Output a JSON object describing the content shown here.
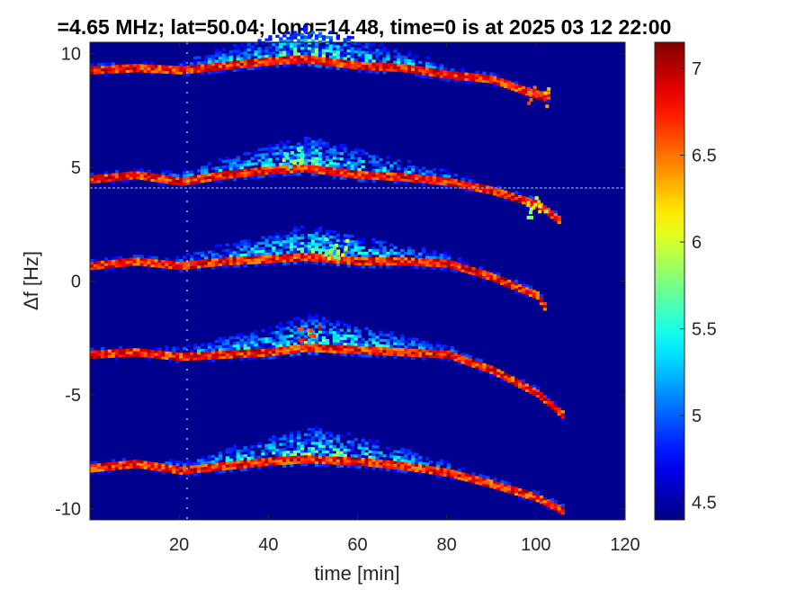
{
  "chart_data": {
    "type": "heatmap",
    "title": "=4.65 MHz;  lat=50.04; long=14.48, time=0 is at 2025 03 12 22:00",
    "xlabel": "time [min]",
    "ylabel": "Δf [Hz]",
    "xlim": [
      0,
      120
    ],
    "ylim": [
      -10.5,
      10.5
    ],
    "xticks": [
      20,
      40,
      60,
      80,
      100,
      120
    ],
    "xtick_labels": [
      "20",
      "40",
      "60",
      "80",
      "100",
      "120"
    ],
    "yticks": [
      10,
      5,
      0,
      -5,
      -10
    ],
    "ytick_labels": [
      "10",
      "5",
      "0",
      "-5",
      "-10"
    ],
    "colorbar": {
      "range": [
        4.4,
        7.15
      ],
      "ticks": [
        7,
        6.5,
        6,
        5.5,
        5,
        4.5
      ],
      "tick_labels": [
        "7",
        "6.5",
        "6",
        "5.5",
        "5",
        "4.5"
      ],
      "colormap": "jet"
    },
    "background_value": 4.45,
    "data_end_time_min": 107,
    "series": [
      {
        "points": [
          [
            0,
            9.2
          ],
          [
            10,
            9.3
          ],
          [
            20,
            9.2
          ],
          [
            30,
            9.4
          ],
          [
            40,
            9.6
          ],
          [
            48,
            9.7
          ],
          [
            60,
            9.4
          ],
          [
            70,
            9.3
          ],
          [
            80,
            9.0
          ],
          [
            90,
            8.8
          ],
          [
            100,
            8.1
          ],
          [
            103,
            8.1
          ]
        ]
      },
      {
        "points": [
          [
            0,
            4.4
          ],
          [
            10,
            4.6
          ],
          [
            20,
            4.3
          ],
          [
            30,
            4.6
          ],
          [
            40,
            4.8
          ],
          [
            48,
            4.9
          ],
          [
            60,
            4.6
          ],
          [
            70,
            4.5
          ],
          [
            80,
            4.3
          ],
          [
            90,
            3.9
          ],
          [
            100,
            3.3
          ],
          [
            105,
            2.6
          ]
        ]
      },
      {
        "points": [
          [
            0,
            0.6
          ],
          [
            10,
            0.8
          ],
          [
            20,
            0.6
          ],
          [
            30,
            0.8
          ],
          [
            40,
            0.9
          ],
          [
            48,
            1.0
          ],
          [
            60,
            0.8
          ],
          [
            70,
            0.8
          ],
          [
            80,
            0.7
          ],
          [
            90,
            0.1
          ],
          [
            100,
            -0.7
          ],
          [
            102,
            -1.3
          ]
        ]
      },
      {
        "points": [
          [
            0,
            -3.3
          ],
          [
            10,
            -3.2
          ],
          [
            20,
            -3.4
          ],
          [
            30,
            -3.3
          ],
          [
            40,
            -3.2
          ],
          [
            48,
            -3.0
          ],
          [
            60,
            -3.1
          ],
          [
            70,
            -3.2
          ],
          [
            80,
            -3.3
          ],
          [
            90,
            -4.0
          ],
          [
            100,
            -5.0
          ],
          [
            106,
            -6.0
          ]
        ]
      },
      {
        "points": [
          [
            0,
            -8.3
          ],
          [
            10,
            -8.1
          ],
          [
            20,
            -8.4
          ],
          [
            30,
            -8.2
          ],
          [
            40,
            -8.0
          ],
          [
            48,
            -7.9
          ],
          [
            60,
            -8.0
          ],
          [
            70,
            -8.2
          ],
          [
            80,
            -8.5
          ],
          [
            90,
            -9.0
          ],
          [
            100,
            -9.6
          ],
          [
            106,
            -10.2
          ]
        ]
      }
    ],
    "blobs": [
      {
        "t": 49,
        "df": -2.4,
        "value": 7.0
      },
      {
        "t": 55,
        "df": 1.5,
        "value": 6.2
      },
      {
        "t": 45,
        "df": 5.5,
        "value": 6.0
      },
      {
        "t": 100,
        "df": 8.2,
        "value": 6.8
      },
      {
        "t": 100,
        "df": 3.3,
        "value": 6.3
      }
    ]
  }
}
